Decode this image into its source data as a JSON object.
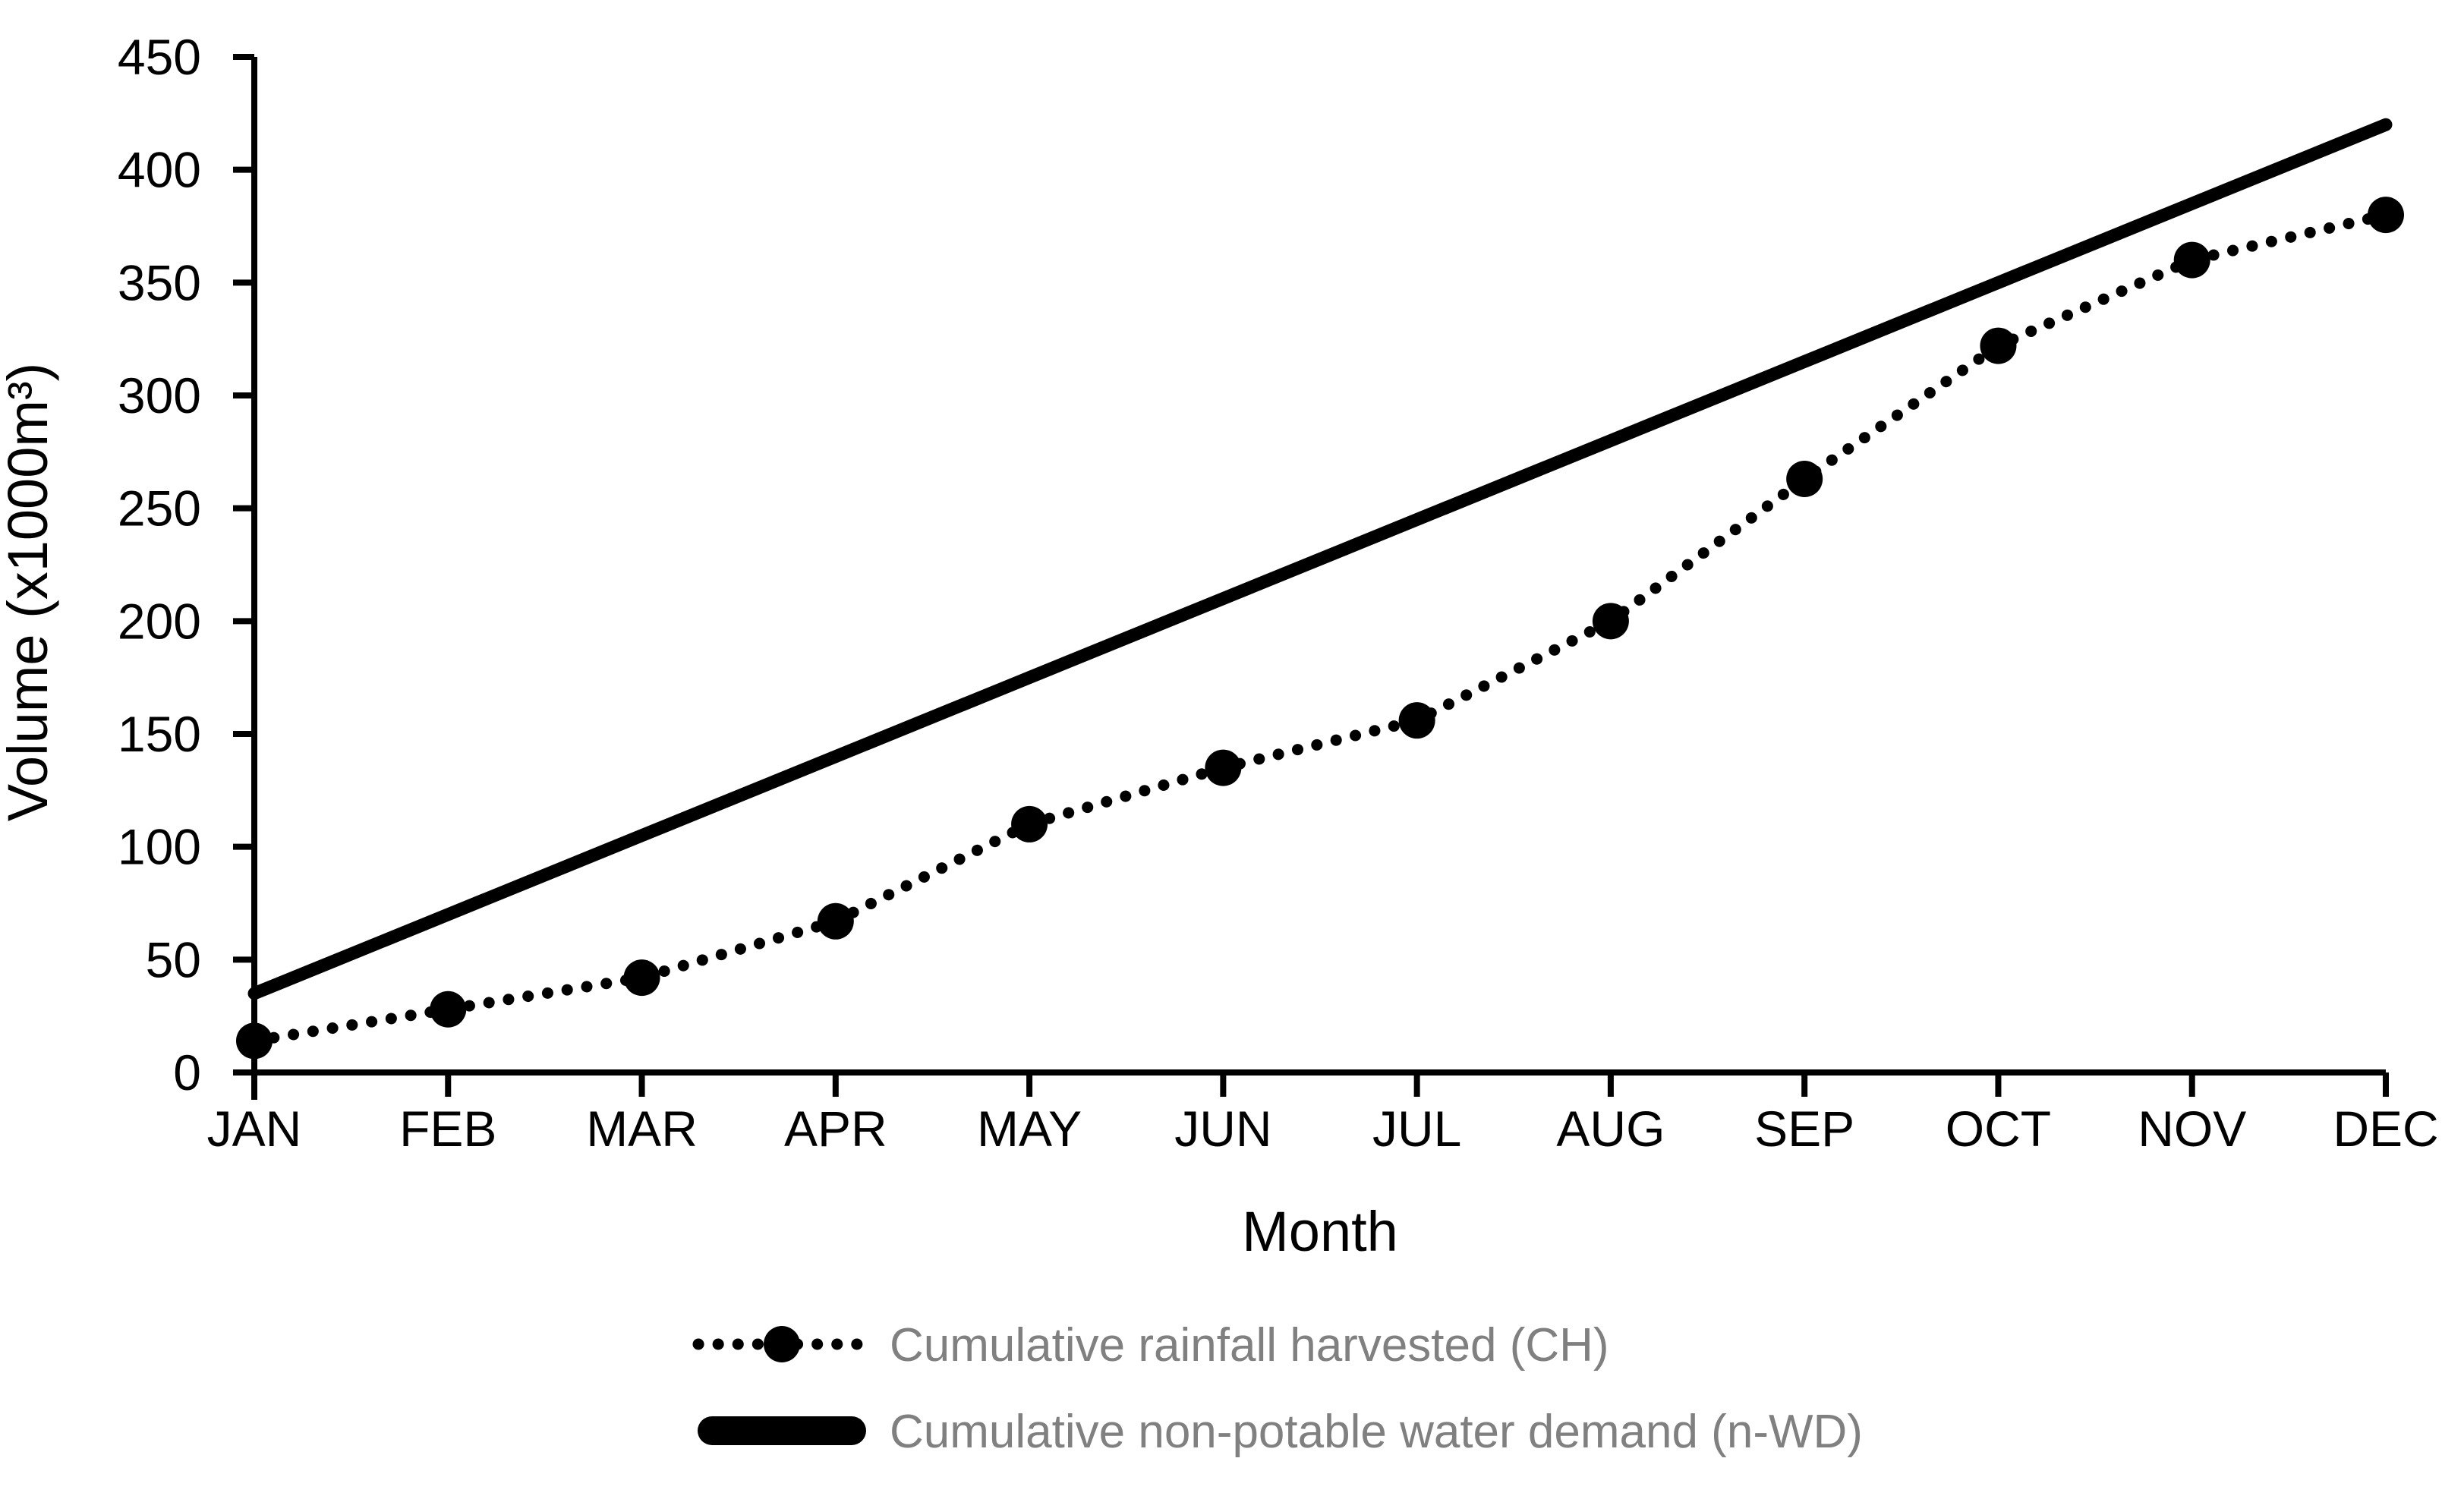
{
  "figure": {
    "background": "#ffffff",
    "axis_color": "#000000",
    "tick_label_color": "#000000",
    "legend_text_color": "#808080",
    "series_color": "#000000"
  },
  "chart_data": {
    "type": "line",
    "title": "",
    "xlabel": "Month",
    "ylabel": "Volume (x1000m³)",
    "categories": [
      "JAN",
      "FEB",
      "MAR",
      "APR",
      "MAY",
      "JUN",
      "JUL",
      "AUG",
      "SEP",
      "OCT",
      "NOV",
      "DEC"
    ],
    "series": [
      {
        "name": "Cumulative rainfall harvested (CH)",
        "short_name": "CH",
        "style": "dotted-with-markers",
        "color": "#000000",
        "values": [
          14,
          28,
          42,
          67,
          110,
          135,
          156,
          200,
          263,
          322,
          360,
          380
        ]
      },
      {
        "name": "Cumulative non-potable water demand (n-WD)",
        "short_name": "n-WD",
        "style": "solid",
        "color": "#000000",
        "values": [
          35,
          70,
          105,
          140,
          175,
          210,
          245,
          280,
          315,
          350,
          385,
          420
        ]
      }
    ],
    "ylim": [
      0,
      450
    ],
    "ytick_step": 50,
    "yticks": [
      0,
      50,
      100,
      150,
      200,
      250,
      300,
      350,
      400,
      450
    ],
    "grid": false,
    "legend_position": "bottom-left"
  }
}
